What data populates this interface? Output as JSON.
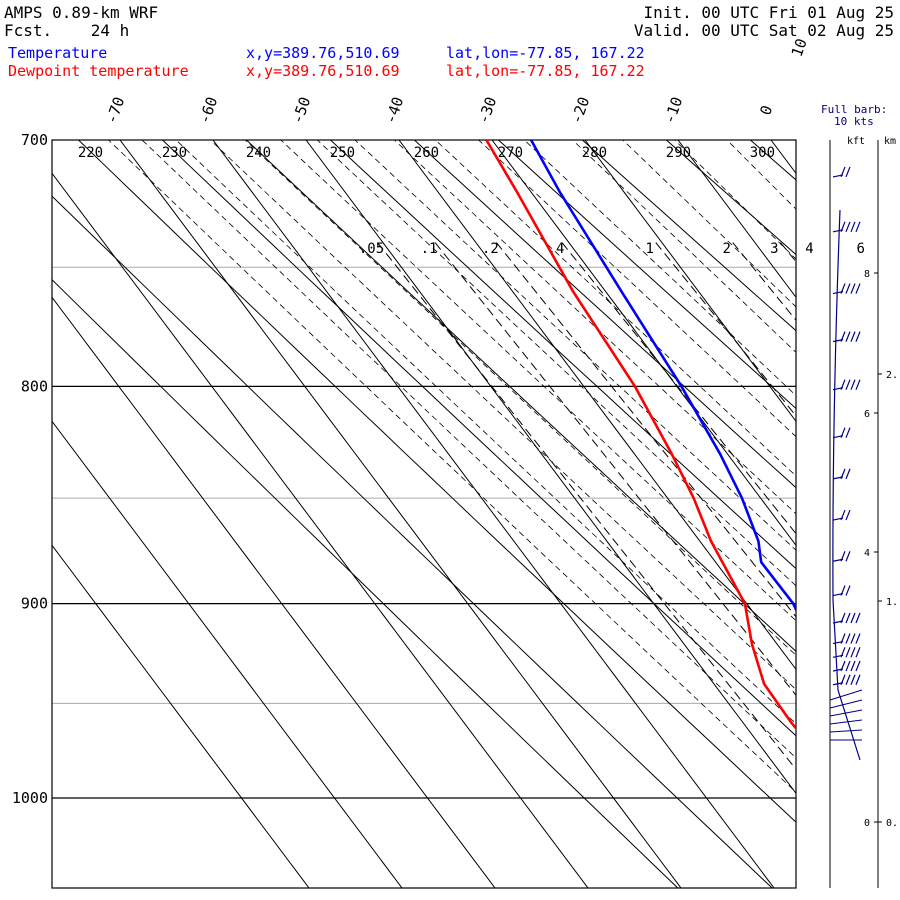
{
  "header": {
    "title": "AMPS 0.89-km WRF",
    "fcst": "Fcst.    24 h",
    "init": "Init. 00 UTC Fri 01 Aug 25",
    "valid": "Valid. 00 UTC Sat 02 Aug 25"
  },
  "legend": {
    "temperature": {
      "label": "Temperature",
      "xy": "x,y=389.76,510.69",
      "latlon": "lat,lon=-77.85, 167.22",
      "color": "#0000ff"
    },
    "dewpoint": {
      "label": "Dewpoint temperature",
      "xy": "x,y=389.76,510.69",
      "latlon": "lat,lon=-77.85, 167.22",
      "color": "#ff0000"
    }
  },
  "barb_legend": {
    "line1": "Full barb:",
    "line2": "10 kts",
    "kft": "kft",
    "km": "km"
  },
  "chart_data": {
    "type": "line",
    "title": "AMPS 0.89-km WRF",
    "pressure_ticks": [
      "700",
      "800",
      "900",
      "1000"
    ],
    "isotherm_labels": [
      "-70",
      "-60",
      "-50",
      "-40",
      "-30",
      "-20",
      "-10",
      "0",
      "10"
    ],
    "isotherm_label_values": [
      -70,
      -60,
      -50,
      -40,
      -30,
      -20,
      -10,
      0,
      10
    ],
    "isotherm_values": [
      -110,
      -100,
      -90,
      -80,
      -70,
      -60,
      -50,
      -40,
      -30,
      -20,
      -10,
      0,
      10,
      20
    ],
    "dry_adiabat_labels": [
      "220",
      "230",
      "240",
      "250",
      "260",
      "270",
      "280",
      "290",
      "300"
    ],
    "mixing_ratio_labels": [
      ".05",
      ".1",
      ".2",
      ".4",
      "1",
      "2",
      "3",
      "4",
      "6"
    ],
    "kft_ticks": [
      "8",
      "6",
      "4",
      "0"
    ],
    "km_ticks": [
      "2.",
      "1.",
      "0."
    ],
    "series": [
      {
        "name": "Temperature",
        "color": "#0000ff",
        "p": [
          700,
          720,
          760,
          800,
          830,
          850,
          870,
          880,
          900,
          920,
          940,
          960,
          980
        ],
        "t": [
          -25.8,
          -26.9,
          -28.3,
          -29.5,
          -30.8,
          -32.0,
          -33.7,
          -35.1,
          -35.0,
          -36.2,
          -37.6,
          -37.0,
          -35.9
        ]
      },
      {
        "name": "Dewpoint temperature",
        "color": "#ff0000",
        "p": [
          700,
          720,
          760,
          800,
          830,
          850,
          870,
          900,
          920,
          940,
          960,
          980
        ],
        "t": [
          -30.6,
          -31.5,
          -33.5,
          -34.5,
          -36.0,
          -37.2,
          -38.8,
          -40.2,
          -42.7,
          -44.6,
          -44.8,
          -44.5
        ]
      }
    ],
    "wind_barbs": [
      {
        "hgt_kft": 9.4,
        "half": true
      },
      {
        "hgt_kft": 8.6,
        "half": false
      },
      {
        "hgt_kft": 7.7,
        "half": false
      },
      {
        "hgt_kft": 7.0,
        "half": false
      },
      {
        "hgt_kft": 6.3,
        "half": false
      },
      {
        "hgt_kft": 5.6,
        "half": true
      },
      {
        "hgt_kft": 5.0,
        "half": true
      },
      {
        "hgt_kft": 4.4,
        "half": true
      },
      {
        "hgt_kft": 3.8,
        "half": true
      },
      {
        "hgt_kft": 3.3,
        "half": true
      },
      {
        "hgt_kft": 2.9,
        "half": false
      },
      {
        "hgt_kft": 2.6,
        "half": false
      },
      {
        "hgt_kft": 2.4,
        "half": false
      },
      {
        "hgt_kft": 2.2,
        "half": false
      },
      {
        "hgt_kft": 2.0,
        "half": false
      }
    ]
  }
}
